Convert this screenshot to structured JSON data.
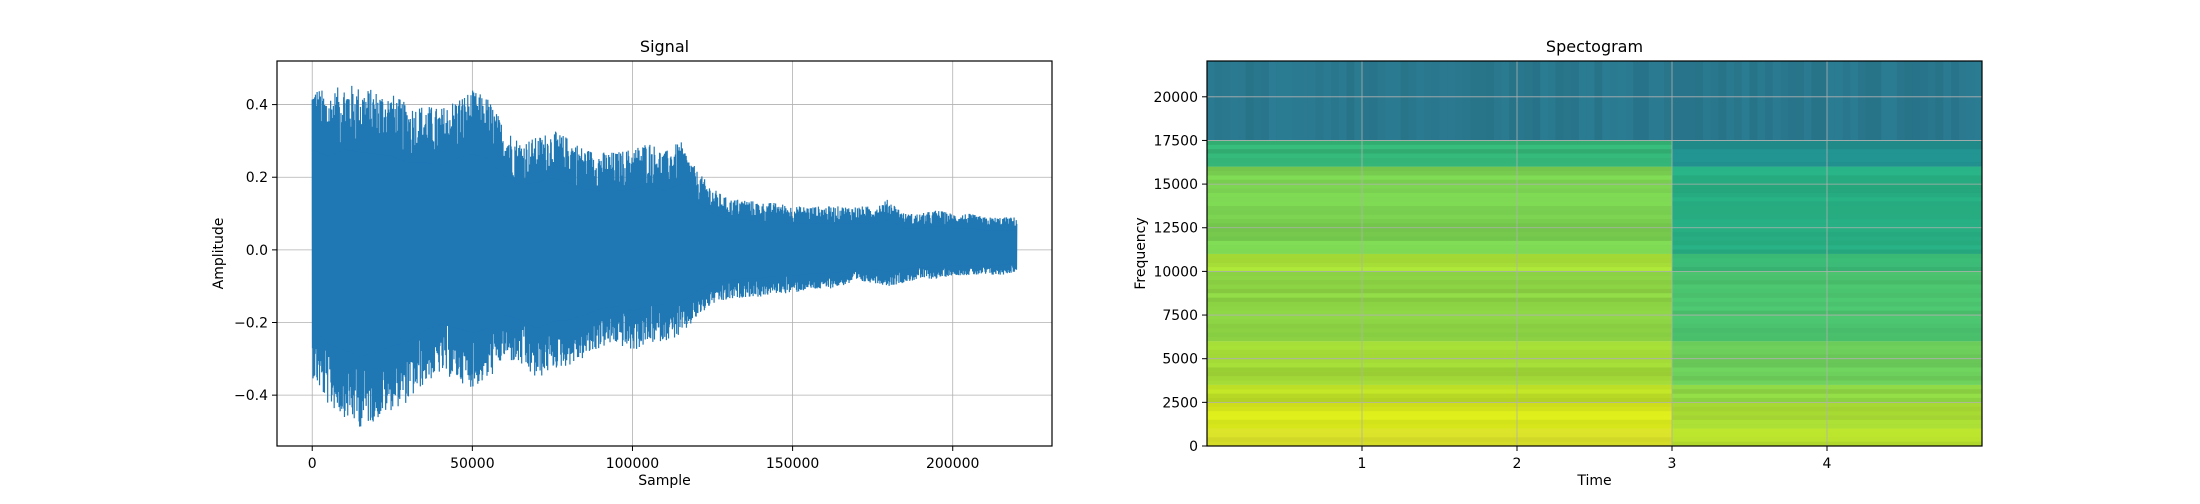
{
  "chart_data": [
    {
      "type": "line",
      "title": "Signal",
      "xlabel": "Sample",
      "ylabel": "Amplitude",
      "xlim": [
        -11000,
        231000
      ],
      "ylim": [
        -0.54,
        0.52
      ],
      "xticks": [
        0,
        50000,
        100000,
        150000,
        200000
      ],
      "yticks": [
        -0.4,
        -0.2,
        0.0,
        0.2,
        0.4
      ],
      "xtick_labels": [
        "0",
        "50000",
        "100000",
        "150000",
        "200000"
      ],
      "ytick_labels": [
        "−0.4",
        "−0.2",
        "0.0",
        "0.2",
        "0.4"
      ],
      "grid": true,
      "color": "#1f77b4",
      "series": [
        {
          "x": [
            0,
            5000,
            10000,
            15000,
            20000,
            25000,
            30000,
            35000,
            40000,
            45000,
            50000,
            55000,
            60000,
            65000,
            70000,
            75000,
            80000,
            85000,
            90000,
            95000,
            100000,
            105000,
            110000,
            115000,
            120000,
            125000,
            130000,
            135000,
            140000,
            145000,
            150000,
            155000,
            160000,
            165000,
            170000,
            175000,
            180000,
            185000,
            190000,
            195000,
            200000,
            205000,
            210000,
            215000,
            220000
          ],
          "upper": [
            0.46,
            0.43,
            0.46,
            0.45,
            0.44,
            0.43,
            0.4,
            0.4,
            0.39,
            0.42,
            0.44,
            0.42,
            0.34,
            0.3,
            0.31,
            0.33,
            0.31,
            0.28,
            0.27,
            0.27,
            0.28,
            0.3,
            0.27,
            0.3,
            0.22,
            0.17,
            0.14,
            0.14,
            0.13,
            0.13,
            0.12,
            0.12,
            0.12,
            0.12,
            0.12,
            0.12,
            0.14,
            0.1,
            0.1,
            0.11,
            0.1,
            0.1,
            0.09,
            0.09,
            0.09
          ],
          "lower": [
            -0.35,
            -0.43,
            -0.46,
            -0.49,
            -0.47,
            -0.44,
            -0.42,
            -0.37,
            -0.34,
            -0.36,
            -0.38,
            -0.36,
            -0.3,
            -0.32,
            -0.36,
            -0.33,
            -0.32,
            -0.3,
            -0.27,
            -0.26,
            -0.28,
            -0.26,
            -0.25,
            -0.24,
            -0.19,
            -0.15,
            -0.14,
            -0.13,
            -0.13,
            -0.12,
            -0.12,
            -0.11,
            -0.11,
            -0.1,
            -0.09,
            -0.09,
            -0.1,
            -0.09,
            -0.08,
            -0.08,
            -0.07,
            -0.07,
            -0.07,
            -0.07,
            -0.06
          ]
        }
      ]
    },
    {
      "type": "heatmap",
      "title": "Spectogram",
      "xlabel": "Time",
      "ylabel": "Frequency",
      "xlim": [
        0,
        5
      ],
      "ylim": [
        0,
        22050
      ],
      "xticks": [
        1,
        2,
        3,
        4
      ],
      "yticks": [
        0,
        2500,
        5000,
        7500,
        10000,
        12500,
        15000,
        17500,
        20000
      ],
      "xtick_labels": [
        "1",
        "2",
        "3",
        "4"
      ],
      "ytick_labels": [
        "0",
        "2500",
        "5000",
        "7500",
        "10000",
        "12500",
        "15000",
        "17500",
        "20000"
      ],
      "grid": true,
      "colormap": "viridis",
      "frequency_bands": [
        {
          "f_from": 0,
          "f_to": 1000,
          "before_t3": "#dbe32b",
          "after_t3": "#b7de2d"
        },
        {
          "f_from": 1000,
          "f_to": 2500,
          "before_t3": "#d2e21b",
          "after_t3": "#a8db34"
        },
        {
          "f_from": 2500,
          "f_to": 3500,
          "before_t3": "#bddf26",
          "after_t3": "#8ed645"
        },
        {
          "f_from": 3500,
          "f_to": 6000,
          "before_t3": "#a3da37",
          "after_t3": "#6ccd5a"
        },
        {
          "f_from": 6000,
          "f_to": 10000,
          "before_t3": "#8ed645",
          "after_t3": "#4ac16d"
        },
        {
          "f_from": 10000,
          "f_to": 11000,
          "before_t3": "#a5db36",
          "after_t3": "#3aba76"
        },
        {
          "f_from": 11000,
          "f_to": 16000,
          "before_t3": "#7ad151",
          "after_t3": "#27ad81"
        },
        {
          "f_from": 16000,
          "f_to": 17500,
          "before_t3": "#35b779",
          "after_t3": "#218f8d"
        },
        {
          "f_from": 17500,
          "f_to": 22050,
          "before_t3": "#2a788e",
          "after_t3": "#2a788e"
        }
      ]
    }
  ]
}
